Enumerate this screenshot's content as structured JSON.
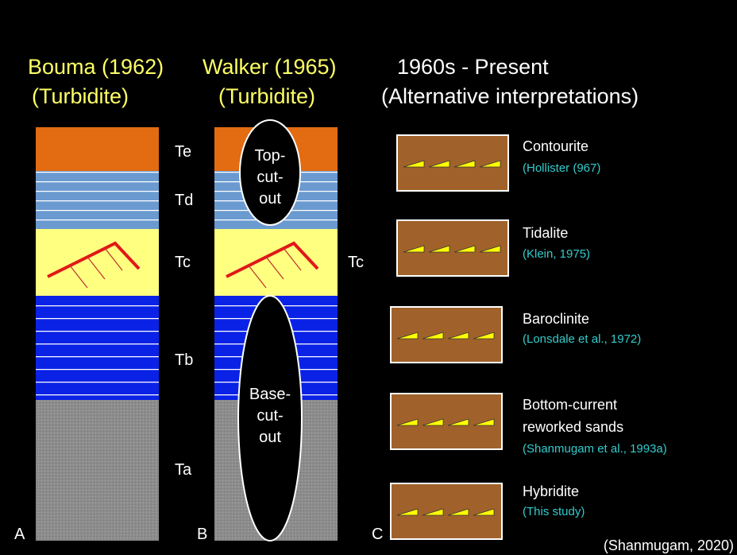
{
  "headings": [
    {
      "lines": [
        "Bouma (1962)",
        "(Turbidite)"
      ]
    },
    {
      "lines": [
        "Walker (1965)",
        "(Turbidite)"
      ]
    },
    {
      "lines": [
        "1960s - Present",
        "(Alternative interpretations)"
      ]
    }
  ],
  "panel_letters": [
    "A",
    "B",
    "C"
  ],
  "layer_labels": {
    "te": "Te",
    "td": "Td",
    "tc": "Tc",
    "tb": "Tb",
    "ta": "Ta",
    "tc_walker": "Tc"
  },
  "top_cut_out": [
    "Top-",
    "cut-",
    "out"
  ],
  "base_cut_out": [
    "Base-",
    "cut-",
    "out"
  ],
  "alternatives": [
    {
      "title": [
        "Contourite"
      ],
      "citation": "(Hollister (967)"
    },
    {
      "title": [
        "Tidalite"
      ],
      "citation": "(Klein, 1975)"
    },
    {
      "title": [
        "Baroclinite"
      ],
      "citation": "(Lonsdale et al., 1972)"
    },
    {
      "title": [
        "Bottom-current",
        "reworked sands"
      ],
      "citation": "(Shanmugam et al., 1993a)"
    },
    {
      "title": [
        "Hybridite"
      ],
      "citation": "(This study)"
    }
  ],
  "source": "(Shanmugam, 2020)"
}
